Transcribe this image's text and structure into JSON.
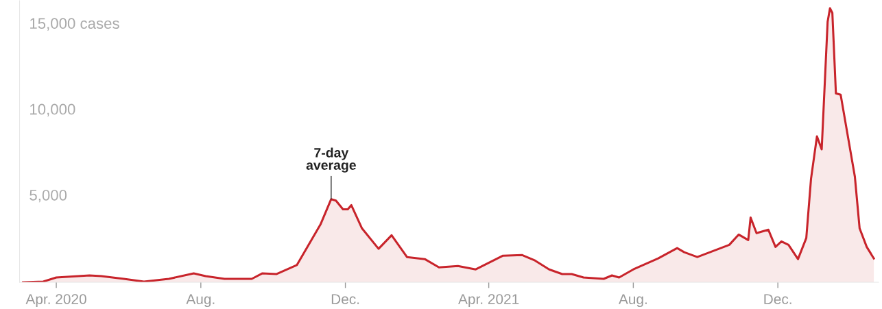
{
  "chart_data": {
    "type": "area",
    "x": [
      "2020-03-04",
      "2020-03-21",
      "2020-04-01",
      "2020-04-29",
      "2020-05-09",
      "2020-05-28",
      "2020-06-14",
      "2020-07-05",
      "2020-07-26",
      "2020-08-05",
      "2020-08-21",
      "2020-09-13",
      "2020-09-22",
      "2020-10-04",
      "2020-10-21",
      "2020-11-10",
      "2020-11-19",
      "2020-11-23",
      "2020-11-29",
      "2020-12-03",
      "2020-12-06",
      "2020-12-15",
      "2020-12-29",
      "2021-01-09",
      "2021-01-22",
      "2021-02-06",
      "2021-02-18",
      "2021-03-06",
      "2021-03-21",
      "2021-04-13",
      "2021-04-29",
      "2021-05-10",
      "2021-05-22",
      "2021-06-02",
      "2021-06-10",
      "2021-06-20",
      "2021-07-07",
      "2021-07-14",
      "2021-07-20",
      "2021-08-01",
      "2021-08-22",
      "2021-09-07",
      "2021-09-13",
      "2021-09-24",
      "2021-10-21",
      "2021-10-29",
      "2021-11-06",
      "2021-11-08",
      "2021-11-13",
      "2021-11-23",
      "2021-11-29",
      "2021-12-04",
      "2021-12-10",
      "2021-12-18",
      "2021-12-25",
      "2021-12-29",
      "2022-01-03",
      "2022-01-07",
      "2022-01-12",
      "2022-01-14",
      "2022-01-16",
      "2022-01-19",
      "2022-01-23",
      "2022-01-30",
      "2022-02-04",
      "2022-02-08",
      "2022-02-14",
      "2022-02-20"
    ],
    "series": [
      {
        "color": "#c8242b",
        "values": [
          0,
          40,
          280,
          400,
          360,
          200,
          40,
          200,
          520,
          360,
          200,
          200,
          520,
          480,
          1000,
          3370,
          4840,
          4760,
          4250,
          4250,
          4490,
          3140,
          1950,
          2740,
          1470,
          1350,
          870,
          950,
          750,
          1550,
          1590,
          1270,
          750,
          480,
          480,
          280,
          200,
          400,
          280,
          750,
          1390,
          1990,
          1750,
          1470,
          2180,
          2780,
          2460,
          3770,
          2860,
          3060,
          2060,
          2380,
          2180,
          1350,
          2580,
          6030,
          8500,
          7740,
          15170,
          15960,
          15680,
          11000,
          10920,
          8140,
          6150,
          3140,
          2060,
          1390
        ]
      }
    ],
    "xlim": [
      "2020-03-01",
      "2022-02-24"
    ],
    "xticks": [
      {
        "value": "2020-04-01",
        "label": "Apr. 2020"
      },
      {
        "value": "2020-08-01",
        "label": "Aug."
      },
      {
        "value": "2020-12-01",
        "label": "Dec."
      },
      {
        "value": "2021-04-01",
        "label": "Apr. 2021"
      },
      {
        "value": "2021-08-01",
        "label": "Aug."
      },
      {
        "value": "2021-12-01",
        "label": "Dec."
      }
    ],
    "ylim": [
      0,
      16400
    ],
    "yticks": [
      {
        "value": 5000,
        "label": "5,000"
      },
      {
        "value": 10000,
        "label": "10,000"
      },
      {
        "value": 15000,
        "label": "15,000 cases"
      }
    ],
    "annotations": [
      {
        "text": "7-day\naverage",
        "x": "2020-11-19",
        "y": 4840
      }
    ],
    "grid": false,
    "legend": false
  }
}
